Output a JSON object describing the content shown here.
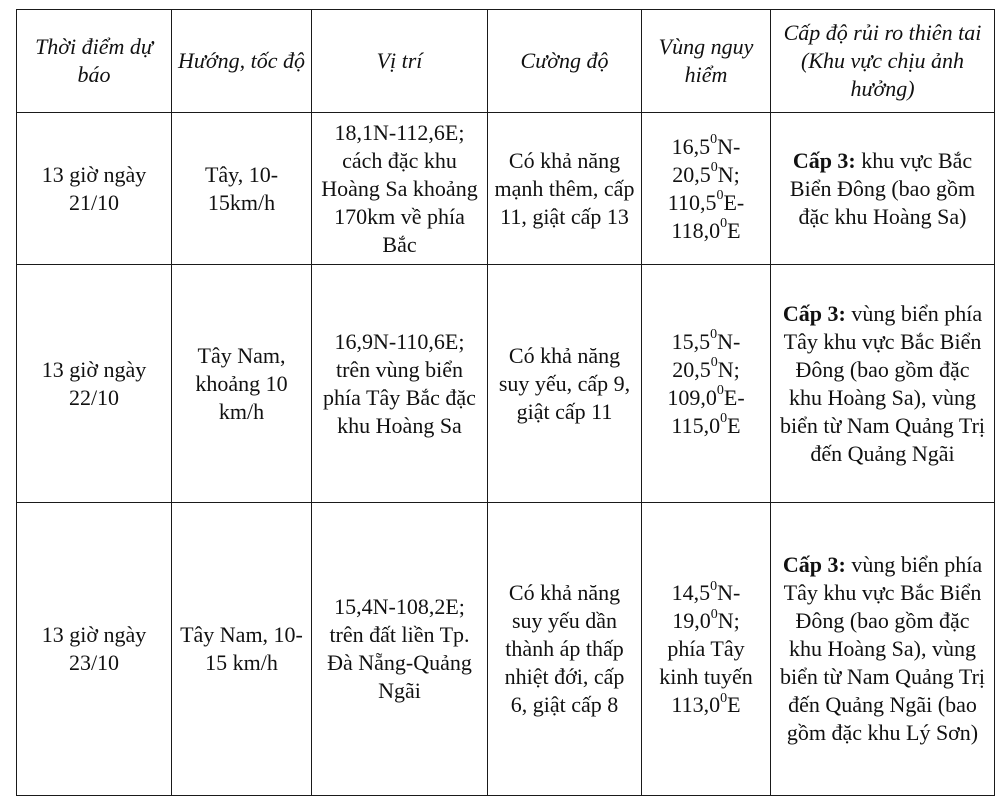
{
  "table": {
    "headers": [
      "Thời điểm dự báo",
      "Hướng, tốc độ",
      "Vị trí",
      "Cường độ",
      "Vùng nguy hiểm",
      "Cấp độ rủi ro thiên tai (Khu vực chịu ảnh hưởng)"
    ],
    "rows": [
      {
        "time": "13 giờ ngày 21/10",
        "direction": "Tây, 10-15km/h",
        "position": "18,1N-112,6E; cách đặc khu Hoàng Sa khoảng 170km về phía Bắc",
        "intensity": "Có khả năng mạnh thêm, cấp 11, giật cấp 13",
        "danger_zone": {
          "lat1": "16,5",
          "lat2": "20,5",
          "lon1": "110,5",
          "lon2": "118,0",
          "deg": "0",
          "n": "N",
          "e": "E"
        },
        "risk_label": "Cấp 3:",
        "risk_text": " khu vực Bắc Biển Đông (bao gồm đặc khu Hoàng Sa)"
      },
      {
        "time": "13 giờ ngày 22/10",
        "direction": "Tây Nam, khoảng 10 km/h",
        "position": "16,9N-110,6E; trên vùng biển phía Tây Bắc đặc khu Hoàng Sa",
        "intensity": "Có khả năng suy yếu, cấp 9, giật cấp 11",
        "danger_zone": {
          "lat1": "15,5",
          "lat2": "20,5",
          "lon1": "109,0",
          "lon2": "115,0",
          "deg": "0",
          "n": "N",
          "e": "E"
        },
        "risk_label": "Cấp 3:",
        "risk_text": " vùng biển phía Tây khu vực Bắc Biển Đông (bao gồm đặc khu Hoàng Sa), vùng biển từ Nam Quảng Trị đến Quảng Ngãi"
      },
      {
        "time": "13 giờ ngày 23/10",
        "direction": "Tây Nam, 10-15 km/h",
        "position": "15,4N-108,2E; trên đất liền Tp. Đà Nẵng-Quảng Ngãi",
        "intensity": "Có khả năng suy yếu dần thành áp thấp nhiệt đới, cấp 6, giật cấp 8",
        "danger_zone": {
          "lat1": "14,5",
          "lat2": "19,0",
          "west": "phía Tây kinh tuyến",
          "lon": "113,0",
          "deg": "0",
          "n": "N",
          "e": "E"
        },
        "risk_label": "Cấp 3:",
        "risk_text": " vùng biển phía Tây khu vực Bắc Biển Đông (bao gồm đặc khu Hoàng Sa), vùng biển từ Nam Quảng Trị đến Quảng Ngãi (bao gồm đặc khu Lý Sơn)"
      }
    ]
  }
}
